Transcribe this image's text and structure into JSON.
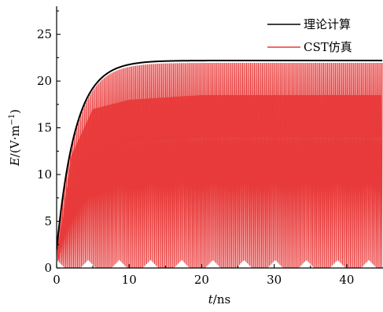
{
  "chart_data": {
    "type": "line",
    "xlabel_var": "t",
    "xlabel_unit": "/ns",
    "ylabel_var": "E",
    "ylabel_unit": "/(V·m",
    "ylabel_exp": "−1",
    "ylabel_close": ")",
    "xlim": [
      0,
      45
    ],
    "ylim": [
      0,
      28
    ],
    "xticks": [
      0,
      10,
      20,
      30,
      40
    ],
    "yticks": [
      0,
      5,
      10,
      15,
      20,
      25
    ],
    "grid": false,
    "legend_position": "top-right",
    "series": [
      {
        "name": "理论计算",
        "color": "#000000",
        "saturation_value": 22.2,
        "rise_time_constant_ns": 2.6,
        "points": [
          [
            0,
            2
          ],
          [
            0.5,
            4
          ],
          [
            1,
            6.7
          ],
          [
            1.5,
            9.2
          ],
          [
            2,
            11.7
          ],
          [
            2.5,
            13.3
          ],
          [
            3,
            15.2
          ],
          [
            3.5,
            16.5
          ],
          [
            4,
            17.5
          ],
          [
            5,
            19.2
          ],
          [
            6,
            20.4
          ],
          [
            7,
            21.1
          ],
          [
            8,
            21.6
          ],
          [
            9,
            21.9
          ],
          [
            10,
            22.0
          ],
          [
            12,
            22.15
          ],
          [
            15,
            22.2
          ],
          [
            20,
            22.2
          ],
          [
            30,
            22.2
          ],
          [
            45,
            22.2
          ]
        ]
      },
      {
        "name": "CST仿真",
        "color": "#ee3b3b",
        "upper_envelope": 22.1,
        "oscillation": "rapid",
        "dense_band": [
          [
            2,
            7,
            12
          ],
          [
            5,
            11,
            17
          ],
          [
            10,
            13.5,
            18
          ],
          [
            20,
            14,
            18.5
          ],
          [
            30,
            14,
            18.5
          ],
          [
            45,
            14,
            18.5
          ]
        ],
        "minima_envelope": "triangular ripple 0–1"
      }
    ]
  }
}
